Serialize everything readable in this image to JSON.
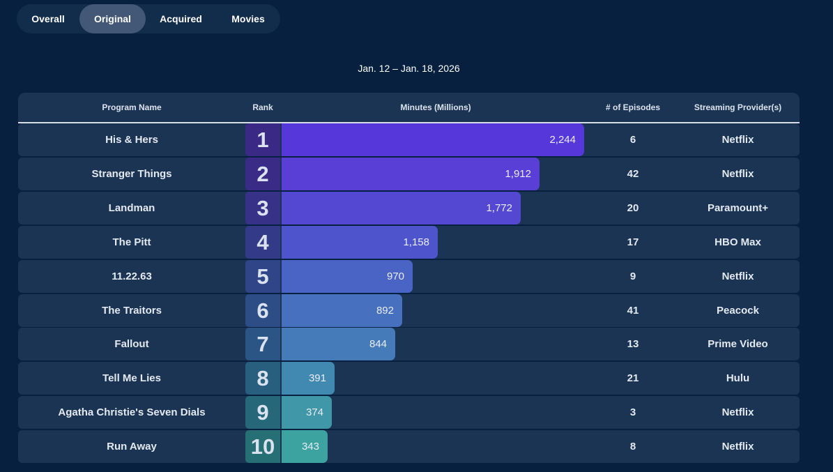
{
  "tabs": [
    {
      "label": "Overall",
      "active": false
    },
    {
      "label": "Original",
      "active": true
    },
    {
      "label": "Acquired",
      "active": false
    },
    {
      "label": "Movies",
      "active": false
    }
  ],
  "date_range": "Jan. 12 – Jan. 18, 2026",
  "headers": {
    "program": "Program Name",
    "rank": "Rank",
    "minutes": "Minutes (Millions)",
    "episodes": "# of Episodes",
    "provider": "Streaming Provider(s)"
  },
  "chart_data": {
    "type": "bar",
    "title": "Jan. 12 – Jan. 18, 2026",
    "xlabel": "Minutes (Millions)",
    "ylabel": "Program Name",
    "xlim": [
      0,
      2244
    ],
    "categories": [
      "His & Hers",
      "Stranger Things",
      "Landman",
      "The Pitt",
      "11.22.63",
      "The Traitors",
      "Fallout",
      "Tell Me Lies",
      "Agatha Christie's Seven Dials",
      "Run Away"
    ],
    "values": [
      2244,
      1912,
      1772,
      1158,
      970,
      892,
      844,
      391,
      374,
      343
    ],
    "rows": [
      {
        "rank": "1",
        "program": "His & Hers",
        "minutes": 2244,
        "minutes_label": "2,244",
        "episodes": "6",
        "provider": "Netflix",
        "rank_color": "#3a2a86",
        "bar_color": "#5637da"
      },
      {
        "rank": "2",
        "program": "Stranger Things",
        "minutes": 1912,
        "minutes_label": "1,912",
        "episodes": "42",
        "provider": "Netflix",
        "rank_color": "#3a2c86",
        "bar_color": "#5a3fd7"
      },
      {
        "rank": "3",
        "program": "Landman",
        "minutes": 1772,
        "minutes_label": "1,772",
        "episodes": "20",
        "provider": "Paramount+",
        "rank_color": "#373287",
        "bar_color": "#5448d2"
      },
      {
        "rank": "4",
        "program": "The Pitt",
        "minutes": 1158,
        "minutes_label": "1,158",
        "episodes": "17",
        "provider": "HBO Max",
        "rank_color": "#333a88",
        "bar_color": "#4e55cc"
      },
      {
        "rank": "5",
        "program": "11.22.63",
        "minutes": 970,
        "minutes_label": "970",
        "episodes": "9",
        "provider": "Netflix",
        "rank_color": "#2f4587",
        "bar_color": "#4a64c6"
      },
      {
        "rank": "6",
        "program": "The Traitors",
        "minutes": 892,
        "minutes_label": "892",
        "episodes": "41",
        "provider": "Peacock",
        "rank_color": "#2c4d86",
        "bar_color": "#4770bf"
      },
      {
        "rank": "7",
        "program": "Fallout",
        "minutes": 844,
        "minutes_label": "844",
        "episodes": "13",
        "provider": "Prime Video",
        "rank_color": "#2a5584",
        "bar_color": "#447bb8"
      },
      {
        "rank": "8",
        "program": "Tell Me Lies",
        "minutes": 391,
        "minutes_label": "391",
        "episodes": "21",
        "provider": "Hulu",
        "rank_color": "#285f7f",
        "bar_color": "#4189b0"
      },
      {
        "rank": "9",
        "program": "Agatha Christie's Seven Dials",
        "minutes": 374,
        "minutes_label": "374",
        "episodes": "3",
        "provider": "Netflix",
        "rank_color": "#27677a",
        "bar_color": "#3f97a8"
      },
      {
        "rank": "10",
        "program": "Run Away",
        "minutes": 343,
        "minutes_label": "343",
        "episodes": "8",
        "provider": "Netflix",
        "rank_color": "#266f74",
        "bar_color": "#3ca3a1"
      }
    ]
  }
}
